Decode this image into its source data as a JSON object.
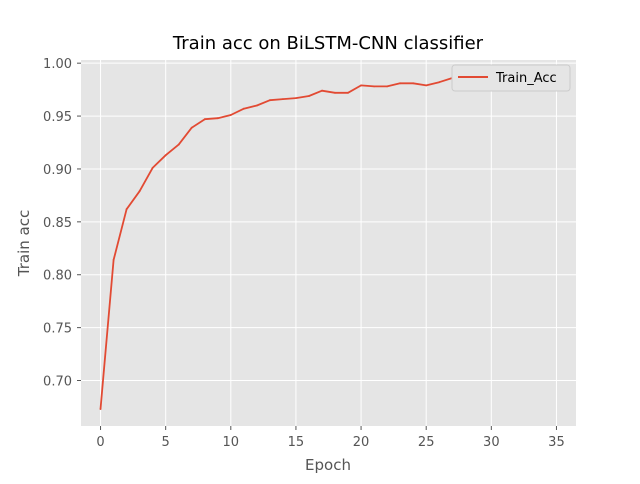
{
  "chart_data": {
    "type": "line",
    "title": "Train acc on BiLSTM-CNN classifier",
    "xlabel": "Epoch",
    "ylabel": "Train acc",
    "xlim": [
      -1.5,
      36.5
    ],
    "ylim": [
      0.657,
      1.003
    ],
    "xticks": [
      0,
      5,
      10,
      15,
      20,
      25,
      30,
      35
    ],
    "yticks": [
      0.7,
      0.75,
      0.8,
      0.85,
      0.9,
      0.95,
      1.0
    ],
    "xtick_labels": [
      "0",
      "5",
      "10",
      "15",
      "20",
      "25",
      "30",
      "35"
    ],
    "ytick_labels": [
      "0.70",
      "0.75",
      "0.80",
      "0.85",
      "0.90",
      "0.95",
      "1.00"
    ],
    "grid": true,
    "legend_position": "top-right",
    "background": "#e5e5e5",
    "series": [
      {
        "name": "Train_Acc",
        "color": "#e24a33",
        "x": [
          0,
          1,
          2,
          3,
          4,
          5,
          6,
          7,
          8,
          9,
          10,
          11,
          12,
          13,
          14,
          15,
          16,
          17,
          18,
          19,
          20,
          21,
          22,
          23,
          24,
          25,
          26,
          27,
          28,
          29,
          30,
          31,
          32,
          33,
          34,
          35
        ],
        "y": [
          0.673,
          0.814,
          0.862,
          0.879,
          0.901,
          0.913,
          0.923,
          0.939,
          0.947,
          0.948,
          0.951,
          0.957,
          0.96,
          0.965,
          0.966,
          0.967,
          0.969,
          0.974,
          0.972,
          0.972,
          0.979,
          0.978,
          0.978,
          0.981,
          0.981,
          0.979,
          0.982,
          0.986,
          0.987,
          0.987,
          0.986,
          0.987,
          0.987,
          0.987,
          0.988,
          0.988
        ]
      }
    ]
  }
}
